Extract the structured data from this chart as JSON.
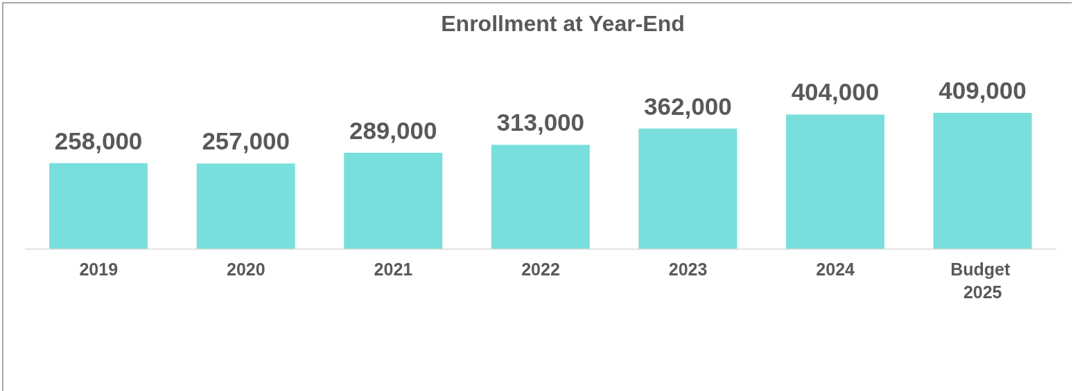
{
  "chart_data": {
    "type": "bar",
    "title": "Enrollment at Year-End",
    "categories": [
      "2019",
      "2020",
      "2021",
      "2022",
      "2023",
      "2024",
      "Budget 2025"
    ],
    "values": [
      258000,
      257000,
      289000,
      313000,
      362000,
      404000,
      409000
    ],
    "value_labels": [
      "258,000",
      "257,000",
      "289,000",
      "313,000",
      "362,000",
      "404,000",
      "409,000"
    ],
    "color": "#79dfdc",
    "tick_labels": "x"
  }
}
